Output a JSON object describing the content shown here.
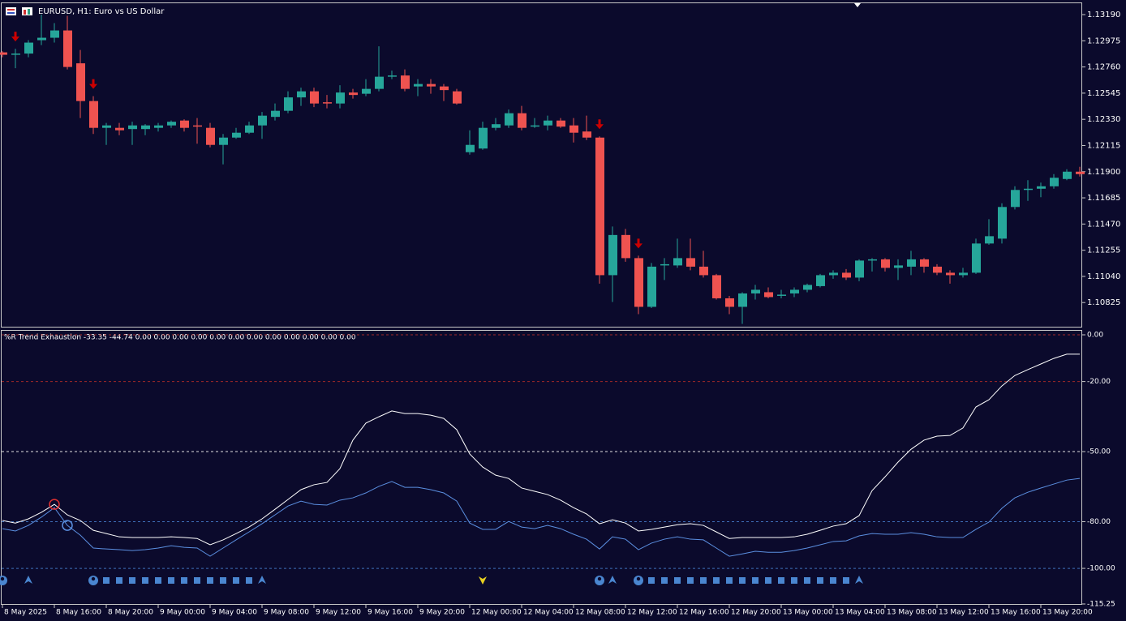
{
  "chart_data": [
    {
      "type": "candlestick",
      "title": "EURUSD, H1:  Euro vs US Dollar",
      "categories": [
        "8 May 2025",
        null,
        null,
        null,
        "8 May 16:00",
        null,
        null,
        null,
        "8 May 20:00",
        null,
        null,
        null,
        "9 May 00:00",
        null,
        null,
        null,
        "9 May 04:00",
        null,
        null,
        null,
        "9 May 08:00",
        null,
        null,
        null,
        "9 May 12:00",
        null,
        null,
        null,
        "9 May 16:00",
        null,
        null,
        null,
        "9 May 20:00",
        null,
        null,
        null,
        "12 May 00:00",
        null,
        null,
        null,
        "12 May 04:00",
        null,
        null,
        null,
        "12 May 08:00",
        null,
        null,
        null,
        "12 May 12:00",
        null,
        null,
        null,
        "12 May 16:00",
        null,
        null,
        null,
        "12 May 20:00",
        null,
        null,
        null,
        "13 May 00:00",
        null,
        null,
        null,
        "13 May 04:00",
        null,
        null,
        null,
        "13 May 08:00",
        null,
        null,
        null,
        "13 May 12:00",
        null,
        null,
        null,
        "13 May 16:00",
        null,
        null,
        null,
        "13 May 20:00",
        null,
        null,
        null
      ],
      "open": [
        1.1288,
        1.1286,
        1.1287,
        1.1298,
        1.13,
        1.1306,
        1.1279,
        1.1248,
        1.1226,
        1.1226,
        1.1225,
        1.1225,
        1.1226,
        1.1228,
        1.1232,
        1.1228,
        1.1226,
        1.1212,
        1.1218,
        1.1222,
        1.1228,
        1.1235,
        1.124,
        1.1251,
        1.1256,
        1.1247,
        1.1246,
        1.1255,
        1.1254,
        1.1258,
        1.1268,
        1.1269,
        1.126,
        1.1262,
        1.126,
        1.1256,
        1.1206,
        1.1209,
        1.1226,
        1.1228,
        1.1238,
        1.1227,
        1.1228,
        1.1232,
        1.1228,
        1.1223,
        1.1218,
        1.1105,
        1.1138,
        1.1119,
        1.1079,
        1.1113,
        1.1113,
        1.1119,
        1.1112,
        1.1105,
        1.1086,
        1.1079,
        1.109,
        1.1091,
        1.1088,
        1.109,
        1.1093,
        1.1096,
        1.1105,
        1.1107,
        1.1103,
        1.1117,
        1.1118,
        1.1111,
        1.1112,
        1.1118,
        1.1112,
        1.1107,
        1.1105,
        1.1107,
        1.1131,
        1.1135,
        1.1161,
        1.1175,
        1.1176,
        1.1178,
        1.1184,
        1.119
      ],
      "high": [
        1.1289,
        1.1291,
        1.1298,
        1.1319,
        1.1312,
        1.1318,
        1.129,
        1.1252,
        1.123,
        1.123,
        1.1231,
        1.1229,
        1.123,
        1.1232,
        1.1233,
        1.1234,
        1.123,
        1.1221,
        1.1226,
        1.1231,
        1.1239,
        1.1246,
        1.1256,
        1.1259,
        1.1259,
        1.1253,
        1.1261,
        1.1258,
        1.1266,
        1.1293,
        1.1273,
        1.1274,
        1.1266,
        1.1266,
        1.1262,
        1.1258,
        1.1224,
        1.1231,
        1.1234,
        1.1241,
        1.1244,
        1.1234,
        1.1236,
        1.1234,
        1.1234,
        1.1236,
        1.1219,
        1.1145,
        1.1143,
        1.1121,
        1.1115,
        1.1119,
        1.1135,
        1.1135,
        1.1125,
        1.1106,
        1.1088,
        1.1091,
        1.1097,
        1.1095,
        1.1093,
        1.1095,
        1.1098,
        1.1106,
        1.1109,
        1.111,
        1.1118,
        1.1119,
        1.1119,
        1.1118,
        1.1125,
        1.1119,
        1.1114,
        1.1109,
        1.1111,
        1.1135,
        1.1151,
        1.1164,
        1.1178,
        1.1183,
        1.1181,
        1.1188,
        1.1192,
        1.1194
      ],
      "low": [
        1.1284,
        1.1275,
        1.1284,
        1.1294,
        1.1296,
        1.1274,
        1.1234,
        1.1221,
        1.1212,
        1.122,
        1.1212,
        1.122,
        1.1223,
        1.1226,
        1.1223,
        1.1213,
        1.121,
        1.1196,
        1.1217,
        1.1221,
        1.1217,
        1.1232,
        1.1238,
        1.1244,
        1.1243,
        1.1242,
        1.1242,
        1.125,
        1.1252,
        1.1256,
        1.1266,
        1.1256,
        1.1252,
        1.1254,
        1.1248,
        1.1245,
        1.1204,
        1.1208,
        1.1224,
        1.1226,
        1.1224,
        1.1226,
        1.1224,
        1.1226,
        1.1214,
        1.1216,
        1.1098,
        1.1083,
        1.1116,
        1.1073,
        1.1078,
        1.1101,
        1.1111,
        1.1109,
        1.1103,
        1.1085,
        1.1073,
        1.1065,
        1.1085,
        1.1086,
        1.1086,
        1.1087,
        1.1091,
        1.1095,
        1.1102,
        1.1101,
        1.11,
        1.1108,
        1.1108,
        1.1101,
        1.1105,
        1.1107,
        1.1105,
        1.1098,
        1.1103,
        1.1106,
        1.113,
        1.1131,
        1.1159,
        1.1166,
        1.1169,
        1.1176,
        1.1183,
        1.1186
      ],
      "close": [
        1.1286,
        1.1287,
        1.1296,
        1.13,
        1.1306,
        1.1276,
        1.1248,
        1.1226,
        1.1228,
        1.1224,
        1.1228,
        1.1228,
        1.1228,
        1.1231,
        1.1226,
        1.1227,
        1.1212,
        1.1218,
        1.1222,
        1.1228,
        1.1236,
        1.124,
        1.1251,
        1.1256,
        1.1246,
        1.1246,
        1.1255,
        1.1253,
        1.1258,
        1.1268,
        1.1269,
        1.1258,
        1.1262,
        1.126,
        1.1257,
        1.1246,
        1.1212,
        1.1226,
        1.1229,
        1.1238,
        1.1226,
        1.1228,
        1.1232,
        1.1227,
        1.1222,
        1.1218,
        1.1105,
        1.1138,
        1.1119,
        1.1079,
        1.1112,
        1.1114,
        1.1119,
        1.1112,
        1.1105,
        1.1086,
        1.1079,
        1.109,
        1.1093,
        1.1087,
        1.1089,
        1.1093,
        1.1097,
        1.1105,
        1.1107,
        1.1103,
        1.1117,
        1.1118,
        1.1111,
        1.1113,
        1.1118,
        1.1112,
        1.1107,
        1.1105,
        1.1107,
        1.1131,
        1.1137,
        1.1161,
        1.1175,
        1.1176,
        1.1178,
        1.1185,
        1.119,
        1.1188
      ],
      "up_color": "#26a69a",
      "down_color": "#ef5350",
      "sell_signals": [
        1,
        7,
        46,
        49
      ],
      "signal_color": "#cc0000",
      "ylim": [
        1.1062,
        1.1329
      ],
      "yticks": [
        {
          "value": 1.1319,
          "label": "1.13190"
        },
        1.12975,
        {
          "value": 1.1276,
          "label": "1.12760"
        },
        1.12545,
        {
          "value": 1.1233,
          "label": "1.12330"
        },
        1.12115,
        {
          "value": 1.119,
          "label": "1.11900"
        },
        1.11685,
        {
          "value": 1.1147,
          "label": "1.11470"
        },
        1.11255,
        {
          "value": 1.1104,
          "label": "1.11040"
        },
        1.10825
      ]
    },
    {
      "type": "line",
      "title": "%R Trend Exhaustion -33.35 -44.74 0.00 0.00 0.00 0.00 0.00 0.00 0.00 0.00 0.00 0.00 0.00 0.00",
      "series": [
        {
          "color": "#ffffff",
          "values": [
            -79.5,
            -80.6,
            -78.8,
            -76.0,
            -72.6,
            -77.1,
            -79.5,
            -83.7,
            -85.1,
            -86.5,
            -86.8,
            -86.8,
            -86.8,
            -86.5,
            -86.8,
            -87.2,
            -89.9,
            -87.8,
            -85.1,
            -82.3,
            -78.8,
            -74.7,
            -70.5,
            -66.3,
            -64.2,
            -63.2,
            -57.3,
            -45.1,
            -37.8,
            -35.1,
            -32.6,
            -33.7,
            -33.7,
            -34.4,
            -35.8,
            -40.6,
            -51.0,
            -56.6,
            -60.1,
            -61.5,
            -65.6,
            -67.0,
            -68.4,
            -70.8,
            -74.0,
            -76.7,
            -80.9,
            -79.2,
            -80.6,
            -84.0,
            -83.3,
            -82.3,
            -81.3,
            -80.9,
            -81.6,
            -84.4,
            -87.2,
            -86.8,
            -86.8,
            -86.8,
            -86.8,
            -86.5,
            -85.4,
            -83.7,
            -81.9,
            -80.9,
            -77.4,
            -66.7,
            -60.8,
            -54.5,
            -49.0,
            -45.1,
            -43.4,
            -43.1,
            -39.9,
            -30.9,
            -27.8,
            -21.9,
            -17.4,
            -14.9,
            -12.5,
            -10.1,
            -8.3,
            -8.3
          ]
        },
        {
          "color": "#5b8fe0",
          "values": [
            -83.0,
            -84.0,
            -81.6,
            -78.1,
            -74.0,
            -81.6,
            -85.8,
            -91.3,
            -91.7,
            -92.0,
            -92.4,
            -92.0,
            -91.3,
            -90.3,
            -91.0,
            -91.3,
            -94.8,
            -91.3,
            -87.8,
            -84.4,
            -80.9,
            -77.1,
            -73.3,
            -71.2,
            -72.6,
            -72.9,
            -70.8,
            -69.8,
            -67.7,
            -64.9,
            -62.8,
            -65.3,
            -65.3,
            -66.3,
            -67.7,
            -71.2,
            -80.6,
            -83.3,
            -83.3,
            -79.9,
            -82.3,
            -83.0,
            -81.6,
            -83.0,
            -85.4,
            -87.5,
            -91.7,
            -86.5,
            -87.5,
            -92.0,
            -89.2,
            -87.5,
            -86.5,
            -87.5,
            -87.8,
            -91.3,
            -94.8,
            -93.8,
            -92.7,
            -93.1,
            -93.1,
            -92.4,
            -91.3,
            -89.9,
            -88.5,
            -88.2,
            -86.1,
            -85.1,
            -85.4,
            -85.4,
            -84.7,
            -85.4,
            -86.5,
            -86.8,
            -86.8,
            -83.3,
            -80.2,
            -74.3,
            -69.8,
            -67.4,
            -65.6,
            -63.9,
            -62.2,
            -61.5
          ]
        }
      ],
      "circles": [
        {
          "series": 0,
          "index": 4,
          "color": "#e03030"
        },
        {
          "series": 1,
          "index": 5,
          "color": "#5b8fe0"
        }
      ],
      "ylim": [
        -115.25,
        0
      ],
      "yticks": [
        {
          "value": 0,
          "label": "0.00"
        },
        {
          "value": -20,
          "label": "-20.00"
        },
        {
          "value": -50,
          "label": "-50.00"
        },
        {
          "value": -80,
          "label": "-80.00"
        },
        {
          "value": -100,
          "label": "-100.00"
        },
        -115.25
      ],
      "grid_colors": [
        "#a02828",
        "#a02828",
        "#e0e0e0",
        "#3f6fb8",
        "#3f6fb8",
        null
      ]
    }
  ]
}
